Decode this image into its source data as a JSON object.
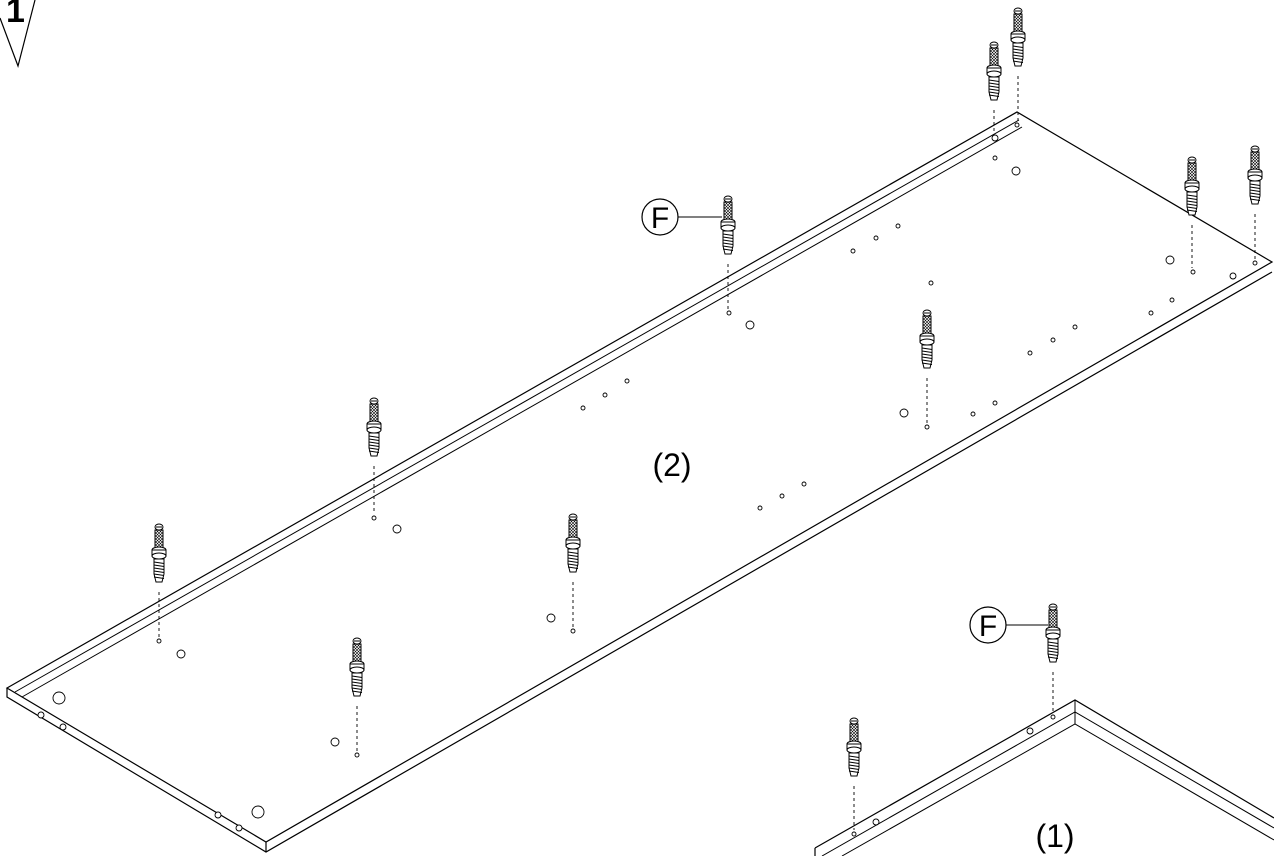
{
  "step": {
    "number": "1"
  },
  "parts": {
    "panel_2_label": "(2)",
    "panel_1_label": "(1)"
  },
  "callouts": {
    "fitting_a": "F",
    "fitting_b": "F"
  },
  "colors": {
    "ink": "#000000",
    "paper": "#ffffff"
  },
  "icons": {
    "step_marker": "triangle-step-icon",
    "fitting": "cam-dowel-icon"
  }
}
